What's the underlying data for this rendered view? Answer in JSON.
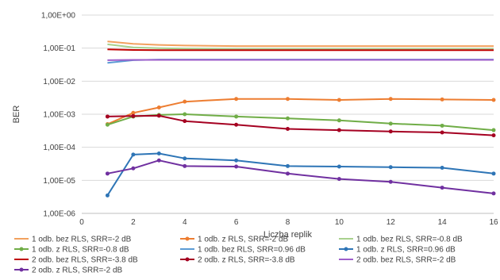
{
  "chart_data": {
    "type": "line",
    "title": "",
    "xlabel": "Liczba replik",
    "ylabel": "BER",
    "xlim": [
      0,
      16
    ],
    "x_ticks": [
      0,
      2,
      4,
      6,
      8,
      10,
      12,
      14,
      16
    ],
    "y_scale": "log",
    "ylim": [
      1e-06,
      1
    ],
    "y_tick_values": [
      1e-06,
      1e-05,
      0.0001,
      0.001,
      0.01,
      0.1,
      1
    ],
    "y_tick_labels": [
      "1,00E-06",
      "1,00E-05",
      "1,00E-04",
      "1,00E-03",
      "1,00E-02",
      "1,00E-01",
      "1,00E+00"
    ],
    "grid": "horizontal",
    "legend_position": "bottom",
    "series": [
      {
        "name": "1 odb. bez RLS, SRR=-2 dB",
        "color": "#F2A15E",
        "marker": "none",
        "x": [
          1,
          2,
          3,
          4,
          6,
          8,
          10,
          12,
          14,
          16
        ],
        "y": [
          0.16,
          0.135,
          0.125,
          0.12,
          0.115,
          0.115,
          0.115,
          0.115,
          0.115,
          0.115
        ]
      },
      {
        "name": "1 odb. z RLS, SRR=-2 dB",
        "color": "#ED7D31",
        "marker": "dot",
        "x": [
          1,
          2,
          3,
          4,
          6,
          8,
          10,
          12,
          14,
          16
        ],
        "y": [
          0.0005,
          0.0011,
          0.0016,
          0.0024,
          0.0029,
          0.0029,
          0.0027,
          0.0029,
          0.0028,
          0.0027
        ]
      },
      {
        "name": "1 odb. bez RLS, SRR=-0.8 dB",
        "color": "#A9D18E",
        "marker": "none",
        "x": [
          1,
          2,
          3,
          4,
          6,
          8,
          10,
          12,
          14,
          16
        ],
        "y": [
          0.13,
          0.105,
          0.1,
          0.097,
          0.095,
          0.095,
          0.095,
          0.095,
          0.095,
          0.095
        ]
      },
      {
        "name": "1 odb. z RLS, SRR=-0.8 dB",
        "color": "#70AD47",
        "marker": "dot",
        "x": [
          1,
          2,
          3,
          4,
          6,
          8,
          10,
          12,
          14,
          16
        ],
        "y": [
          0.00048,
          0.00085,
          0.00095,
          0.001,
          0.00085,
          0.00075,
          0.00065,
          0.00052,
          0.00045,
          0.00033
        ]
      },
      {
        "name": "1 odb. bez RLS, SRR=0.96 dB",
        "color": "#5B9BD5",
        "marker": "none",
        "x": [
          1,
          2,
          3,
          4,
          6,
          8,
          10,
          12,
          14,
          16
        ],
        "y": [
          0.036,
          0.043,
          0.045,
          0.045,
          0.045,
          0.045,
          0.045,
          0.045,
          0.045,
          0.045
        ]
      },
      {
        "name": "1 odb. z RLS, SRR=0.96 dB",
        "color": "#2E75B6",
        "marker": "dot",
        "x": [
          1,
          2,
          3,
          4,
          6,
          8,
          10,
          12,
          14,
          16
        ],
        "y": [
          3.5e-06,
          6e-05,
          6.5e-05,
          4.6e-05,
          4e-05,
          2.7e-05,
          2.6e-05,
          2.5e-05,
          2.4e-05,
          1.6e-05
        ]
      },
      {
        "name": "2 odb. bez RLS, SRR=-3.8 dB",
        "color": "#C00000",
        "marker": "none",
        "x": [
          1,
          2,
          3,
          4,
          6,
          8,
          10,
          12,
          14,
          16
        ],
        "y": [
          0.092,
          0.088,
          0.087,
          0.087,
          0.087,
          0.087,
          0.087,
          0.087,
          0.087,
          0.087
        ]
      },
      {
        "name": "2 odb. z RLS, SRR=-3.8 dB",
        "color": "#A50021",
        "marker": "dot",
        "x": [
          1,
          2,
          3,
          4,
          6,
          8,
          10,
          12,
          14,
          16
        ],
        "y": [
          0.00085,
          0.00088,
          0.0009,
          0.00062,
          0.00048,
          0.00036,
          0.00033,
          0.0003,
          0.00028,
          0.00023
        ]
      },
      {
        "name": "2 odb. bez RLS, SRR=-2 dB",
        "color": "#9E5FCB",
        "marker": "none",
        "x": [
          1,
          2,
          3,
          4,
          6,
          8,
          10,
          12,
          14,
          16
        ],
        "y": [
          0.043,
          0.044,
          0.044,
          0.044,
          0.044,
          0.044,
          0.044,
          0.044,
          0.044,
          0.044
        ]
      },
      {
        "name": "2 odb. z RLS, SRR=-2 dB",
        "color": "#7030A0",
        "marker": "dot",
        "x": [
          1,
          2,
          3,
          4,
          6,
          8,
          10,
          12,
          14,
          16
        ],
        "y": [
          1.6e-05,
          2.3e-05,
          4e-05,
          2.7e-05,
          2.6e-05,
          1.6e-05,
          1.1e-05,
          9e-06,
          6e-06,
          4e-06
        ]
      }
    ]
  }
}
